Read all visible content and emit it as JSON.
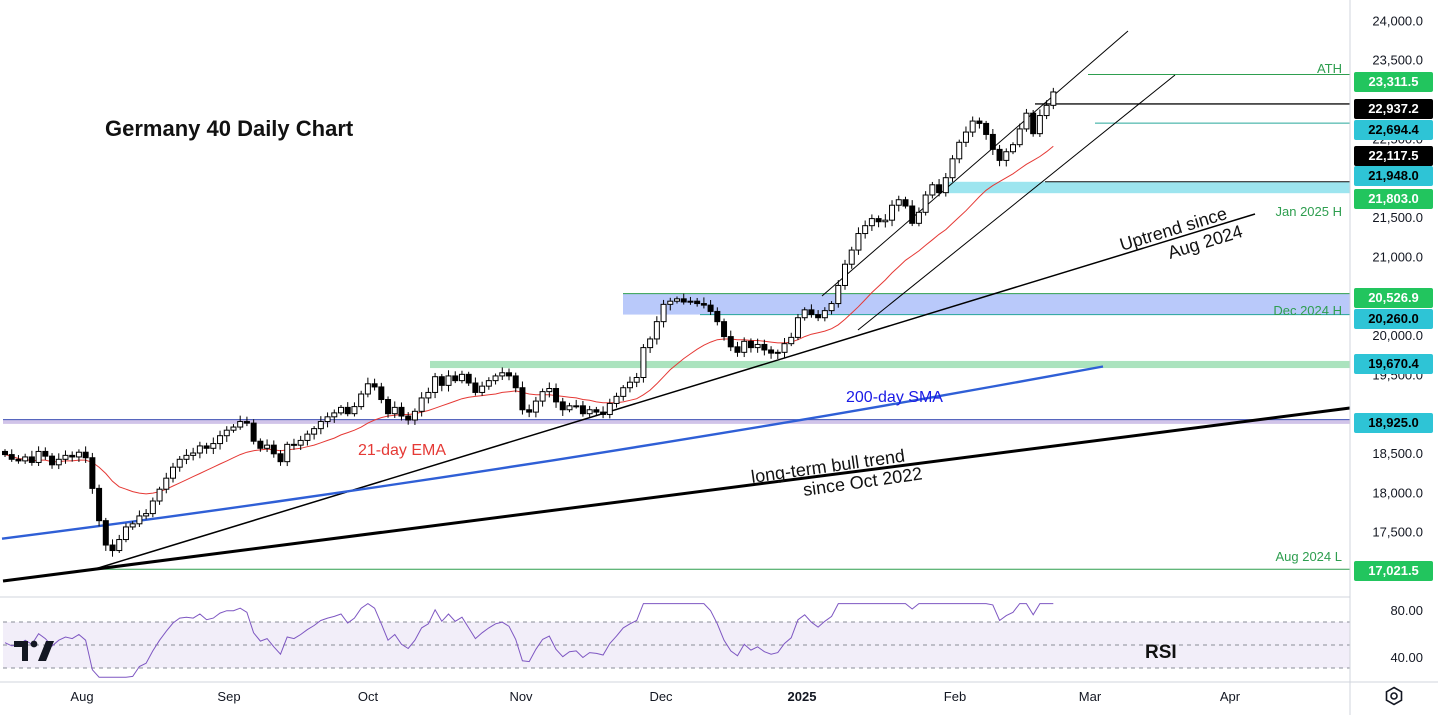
{
  "title": "Germany 40 Daily Chart",
  "chart_data": {
    "type": "candlestick",
    "instrument": "Germany 40",
    "timeframe": "Daily",
    "x_axis_labels": [
      "Aug",
      "Sep",
      "Oct",
      "Nov",
      "Dec",
      "2025",
      "Feb",
      "Mar",
      "Apr"
    ],
    "y_axis_ticks": [
      "24,000.0",
      "23,500.0",
      "22,500.0",
      "21,500.0",
      "21,000.0",
      "20,000.0",
      "19,500.0",
      "18,500.0",
      "18,000.0",
      "17,500.0"
    ],
    "ylim": [
      17000,
      24200
    ],
    "level_labels": [
      {
        "value": 23311.5,
        "text": "23,311.5",
        "style": "green"
      },
      {
        "value": 22937.2,
        "text": "22,937.2",
        "style": "black"
      },
      {
        "value": 22694.4,
        "text": "22,694.4",
        "style": "teal"
      },
      {
        "value": 22117.5,
        "text": "22,117.5",
        "style": "black"
      },
      {
        "value": 21948.0,
        "text": "21,948.0",
        "style": "teal"
      },
      {
        "value": 21803.0,
        "text": "21,803.0",
        "style": "green"
      },
      {
        "value": 20526.9,
        "text": "20,526.9",
        "style": "green"
      },
      {
        "value": 20260.0,
        "text": "20,260.0",
        "style": "teal"
      },
      {
        "value": 19670.4,
        "text": "19,670.4",
        "style": "teal"
      },
      {
        "value": 18925.0,
        "text": "18,925.0",
        "style": "teal"
      },
      {
        "value": 17021.5,
        "text": "17,021.5",
        "style": "green"
      }
    ],
    "annotations": {
      "ath": "ATH",
      "jan_high": "Jan 2025 H",
      "dec_high": "Dec 2024 H",
      "aug_low": "Aug 2024 L",
      "uptrend": "Uptrend since\nAug 2024",
      "sma": "200-day SMA",
      "ema": "21-day EMA",
      "bull_trend": "long-term bull trend\nsince Oct 2022"
    },
    "closes": [
      18480,
      18420,
      18400,
      18450,
      18380,
      18520,
      18460,
      18350,
      18420,
      18470,
      18450,
      18510,
      18440,
      18050,
      17640,
      17330,
      17260,
      17400,
      17560,
      17600,
      17700,
      17730,
      17890,
      18040,
      18180,
      18320,
      18420,
      18470,
      18500,
      18590,
      18560,
      18620,
      18720,
      18790,
      18830,
      18900,
      18880,
      18650,
      18560,
      18600,
      18490,
      18390,
      18610,
      18600,
      18660,
      18740,
      18810,
      18900,
      18960,
      19010,
      19080,
      19000,
      19090,
      19250,
      19380,
      19340,
      19180,
      19000,
      19080,
      18970,
      18920,
      19030,
      19200,
      19270,
      19470,
      19360,
      19480,
      19420,
      19500,
      19390,
      19270,
      19350,
      19420,
      19480,
      19520,
      19480,
      19330,
      19050,
      19020,
      19160,
      19280,
      19320,
      19150,
      19050,
      19100,
      19100,
      19000,
      19050,
      19020,
      18990,
      19130,
      19220,
      19330,
      19400,
      19460,
      19840,
      19950,
      20170,
      20390,
      20430,
      20460,
      20420,
      20430,
      20400,
      20380,
      20300,
      20170,
      19980,
      19850,
      19780,
      19920,
      19840,
      19880,
      19810,
      19770,
      19780,
      19890,
      19970,
      20220,
      20320,
      20260,
      20220,
      20310,
      20400,
      20630,
      20900,
      21080,
      21290,
      21390,
      21480,
      21440,
      21460,
      21650,
      21720,
      21640,
      21420,
      21560,
      21780,
      21910,
      21810,
      22000,
      22240,
      22450,
      22580,
      22720,
      22690,
      22550,
      22360,
      22220,
      22330,
      22420,
      22620,
      22820,
      22560,
      22790,
      22920,
      23090
    ],
    "ema21": [
      18480,
      18458,
      18430,
      18420,
      18400,
      18410,
      18410,
      18390,
      18390,
      18400,
      18400,
      18410,
      18410,
      18380,
      18320,
      18240,
      18140,
      18070,
      18040,
      18010,
      17990,
      17980,
      17990,
      18010,
      18040,
      18080,
      18120,
      18160,
      18200,
      18240,
      18280,
      18320,
      18360,
      18400,
      18440,
      18480,
      18510,
      18530,
      18540,
      18550,
      18540,
      18530,
      18540,
      18550,
      18560,
      18580,
      18600,
      18630,
      18660,
      18690,
      18730,
      18760,
      18790,
      18830,
      18880,
      18920,
      18950,
      18970,
      18980,
      18990,
      18990,
      19000,
      19020,
      19040,
      19070,
      19100,
      19130,
      19160,
      19190,
      19210,
      19220,
      19230,
      19240,
      19250,
      19270,
      19280,
      19290,
      19270,
      19250,
      19240,
      19240,
      19240,
      19230,
      19220,
      19210,
      19200,
      19180,
      19170,
      19150,
      19140,
      19140,
      19140,
      19150,
      19170,
      19190,
      19240,
      19300,
      19380,
      19470,
      19560,
      19630,
      19700,
      19760,
      19820,
      19870,
      19910,
      19940,
      19950,
      19950,
      19940,
      19940,
      19930,
      19930,
      19920,
      19910,
      19900,
      19900,
      19910,
      19940,
      19980,
      20010,
      20030,
      20050,
      20080,
      20130,
      20200,
      20280,
      20360,
      20450,
      20540,
      20620,
      20700,
      20790,
      20870,
      20950,
      21010,
      21070,
      21140,
      21210,
      21280,
      21340,
      21420,
      21500,
      21580,
      21670,
      21760,
      21840,
      21900,
      21950,
      22000,
      22050,
      22110,
      22170,
      22220,
      22270,
      22330,
      22400
    ],
    "sma200": {
      "x_start": 2,
      "x_end": 1103,
      "start": 17410,
      "end": 19600
    },
    "rsi": {
      "label": "RSI",
      "ticks": [
        "80.00",
        "40.00"
      ]
    }
  }
}
